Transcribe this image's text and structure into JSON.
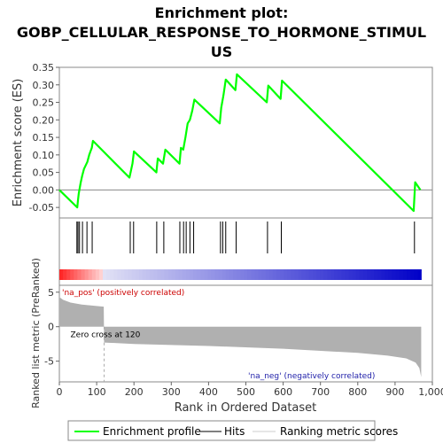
{
  "chart_data": {
    "type": "line",
    "title_lines": [
      "Enrichment plot:",
      "GOBP_CELLULAR_RESPONSE_TO_HORMONE_STIMUL",
      "US"
    ],
    "es_panel": {
      "ylabel": "Enrichment score (ES)",
      "ylim": [
        -0.08,
        0.35
      ],
      "yticks": [
        "-0.05",
        "0.00",
        "0.05",
        "0.10",
        "0.15",
        "0.20",
        "0.25",
        "0.30",
        "0.35"
      ],
      "ytick_values": [
        -0.05,
        0.0,
        0.05,
        0.1,
        0.15,
        0.2,
        0.25,
        0.3,
        0.35
      ],
      "series": [
        {
          "name": "Enrichment profile",
          "color": "#00ff00",
          "x": [
            0,
            48,
            50,
            52,
            57,
            61,
            66,
            75,
            80,
            87,
            90,
            188,
            192,
            196,
            200,
            260,
            264,
            278,
            284,
            322,
            326,
            332,
            338,
            344,
            350,
            356,
            362,
            430,
            434,
            440,
            446,
            472,
            476,
            556,
            560,
            593,
            597,
            950,
            954,
            968
          ],
          "y": [
            0.0,
            -0.05,
            -0.03,
            -0.01,
            0.02,
            0.04,
            0.06,
            0.08,
            0.1,
            0.12,
            0.14,
            0.035,
            0.055,
            0.075,
            0.11,
            0.05,
            0.09,
            0.075,
            0.115,
            0.075,
            0.12,
            0.115,
            0.15,
            0.19,
            0.2,
            0.225,
            0.258,
            0.19,
            0.235,
            0.27,
            0.315,
            0.285,
            0.33,
            0.25,
            0.298,
            0.26,
            0.312,
            -0.06,
            0.022,
            0.0
          ]
        }
      ]
    },
    "hits": {
      "name": "Hits",
      "positions": [
        47,
        50,
        54,
        62,
        74,
        88,
        190,
        199,
        261,
        280,
        323,
        333,
        340,
        350,
        360,
        432,
        438,
        446,
        474,
        558,
        595,
        952
      ]
    },
    "ranking_panel": {
      "ylabel": "Ranked list metric (PreRanked)",
      "xlabel": "Rank in Ordered Dataset",
      "xlim": [
        0,
        1000
      ],
      "ylim": [
        -8,
        6
      ],
      "yticks": [
        "5",
        "0",
        "-5"
      ],
      "ytick_values": [
        5,
        0,
        -5
      ],
      "xticks": [
        "0",
        "100",
        "200",
        "300",
        "400",
        "500",
        "600",
        "700",
        "800",
        "900",
        "1,000"
      ],
      "xtick_values": [
        0,
        100,
        200,
        300,
        400,
        500,
        600,
        700,
        800,
        900,
        1000
      ],
      "zero_cross_label": "Zero cross at 120",
      "zero_cross": 120,
      "pos_label": "'na_pos' (positively correlated)",
      "neg_label": "'na_neg' (negatively correlated)",
      "metric_points": {
        "x": [
          0,
          10,
          30,
          60,
          100,
          119,
          120,
          200,
          400,
          600,
          800,
          880,
          930,
          955,
          965,
          970
        ],
        "y": [
          4.3,
          3.9,
          3.5,
          3.2,
          3.0,
          2.9,
          -2.3,
          -2.5,
          -2.8,
          -3.2,
          -3.8,
          -4.2,
          -4.6,
          -5.2,
          -6.0,
          -7.3
        ]
      },
      "total": 970
    },
    "legend": {
      "items": [
        {
          "label": "Enrichment profile",
          "color": "#00ff00"
        },
        {
          "label": "Hits",
          "color": "#000000"
        },
        {
          "label": "Ranking metric scores",
          "color": "#cccccc"
        }
      ]
    },
    "colors": {
      "es_line": "#00ff00",
      "metric_fill": "#b0b0b0",
      "pos_label": "#cc0000",
      "neg_label": "#2222aa",
      "bar_pos": "#ff2020",
      "bar_neg": "#0000cc"
    }
  }
}
